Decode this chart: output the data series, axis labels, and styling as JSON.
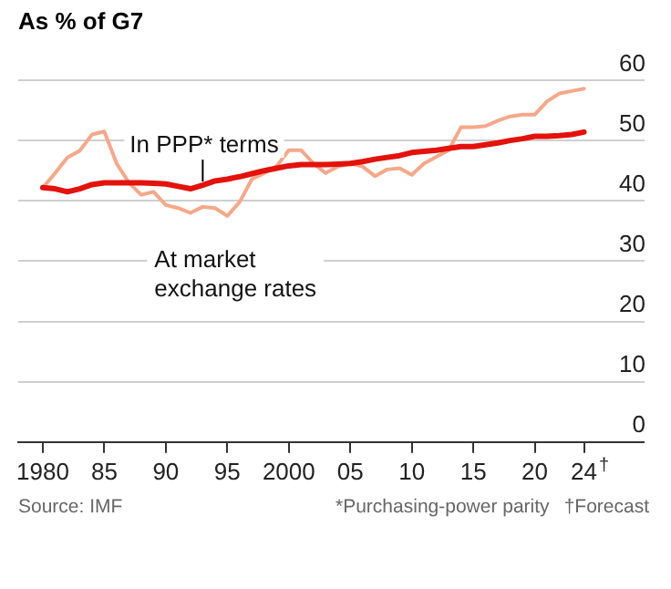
{
  "chart_data": {
    "type": "line",
    "title": "As % of G7",
    "x": [
      1980,
      1981,
      1982,
      1983,
      1984,
      1985,
      1986,
      1987,
      1988,
      1989,
      1990,
      1991,
      1992,
      1993,
      1994,
      1995,
      1996,
      1997,
      1998,
      1999,
      2000,
      2001,
      2002,
      2003,
      2004,
      2005,
      2006,
      2007,
      2008,
      2009,
      2010,
      2011,
      2012,
      2013,
      2014,
      2015,
      2016,
      2017,
      2018,
      2019,
      2020,
      2021,
      2022,
      2023,
      2024
    ],
    "series": [
      {
        "name": "In PPP* terms",
        "color": "#e3120b",
        "values": [
          42.2,
          42,
          41.5,
          42,
          42.7,
          43,
          43,
          43,
          43,
          42.9,
          42.8,
          42.4,
          42,
          42.6,
          43.3,
          43.6,
          44,
          44.5,
          45,
          45.4,
          45.8,
          46,
          46,
          46,
          46.1,
          46.2,
          46.5,
          46.9,
          47.2,
          47.5,
          48,
          48.2,
          48.4,
          48.7,
          49,
          49,
          49.3,
          49.6,
          50,
          50.3,
          50.7,
          50.7,
          50.8,
          51,
          51.4
        ]
      },
      {
        "name": "At market exchange rates",
        "color": "#f6a888",
        "values": [
          42.2,
          44.6,
          47.2,
          48.3,
          51,
          51.5,
          46.2,
          43,
          41,
          41.5,
          39.3,
          38.8,
          38,
          39,
          38.8,
          37.5,
          39.8,
          43.6,
          44.6,
          45.7,
          48.4,
          48.4,
          46.2,
          44.6,
          45.7,
          46.2,
          45.7,
          44.1,
          45.2,
          45.4,
          44.3,
          46.2,
          47.3,
          48.4,
          52.2,
          52.2,
          52.4,
          53.3,
          54,
          54.3,
          54.3,
          56.5,
          57.8,
          58.2,
          58.6
        ]
      }
    ],
    "xlim": [
      1978,
      2029
    ],
    "xticks": [
      1980,
      {
        "value": 1985,
        "label": "85"
      },
      {
        "value": 1990,
        "label": "90"
      },
      {
        "value": 1995,
        "label": "95"
      },
      2000,
      {
        "value": 2005,
        "label": "05"
      },
      {
        "value": 2010,
        "label": "10"
      },
      {
        "value": 2015,
        "label": "15"
      },
      {
        "value": 2020,
        "label": "20"
      },
      {
        "value": 2024,
        "label": "24"
      }
    ],
    "ylim": [
      0,
      60
    ],
    "yticks": [
      0,
      10,
      20,
      30,
      40,
      50,
      60
    ],
    "grid": "y",
    "legend": false,
    "marker": "none",
    "line_style": "solid",
    "annotations": [
      "Source: IMF",
      "*Purchasing-power parity",
      "†Forecast",
      "†"
    ]
  }
}
